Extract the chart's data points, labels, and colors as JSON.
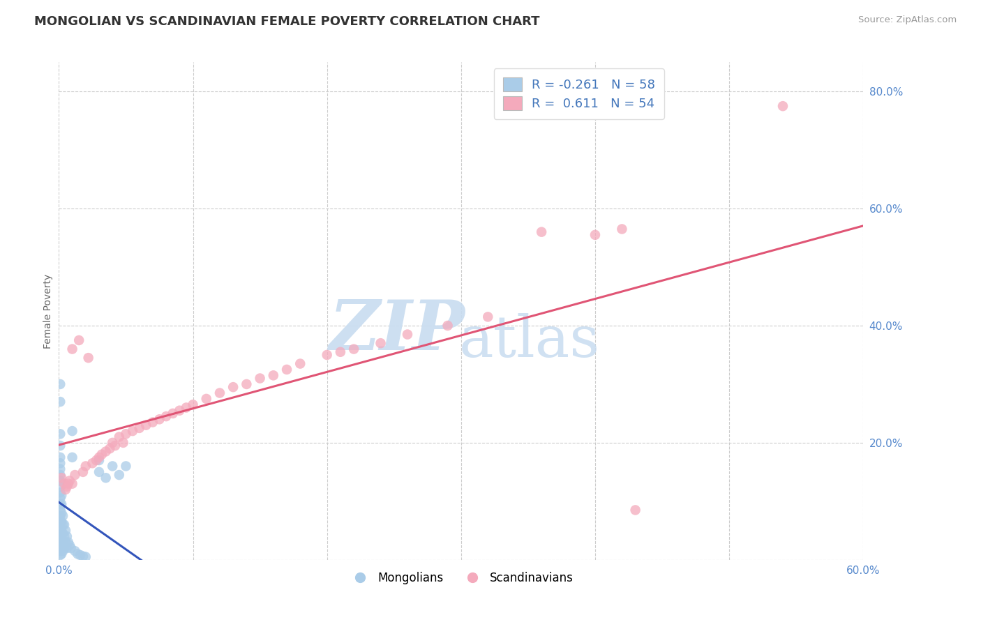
{
  "title": "MONGOLIAN VS SCANDINAVIAN FEMALE POVERTY CORRELATION CHART",
  "source": "Source: ZipAtlas.com",
  "ylabel": "Female Poverty",
  "xlim": [
    0.0,
    0.6
  ],
  "ylim": [
    0.0,
    0.85
  ],
  "x_tick_labels": [
    "0.0%",
    "",
    "",
    "",
    "",
    "",
    "60.0%"
  ],
  "y_tick_labels": [
    "",
    "20.0%",
    "40.0%",
    "60.0%",
    "80.0%"
  ],
  "mongolian_color": "#AACCE8",
  "scandinavian_color": "#F4AABC",
  "mongolian_line_color": "#3355BB",
  "scandinavian_line_color": "#E05575",
  "legend_mongolian_label": "Mongolians",
  "legend_scandinavian_label": "Scandinavians",
  "r_mongolian": -0.261,
  "n_mongolian": 58,
  "r_scandinavian": 0.611,
  "n_scandinavian": 54,
  "background_color": "#FFFFFF",
  "mongolian_points": [
    [
      0.001,
      0.3
    ],
    [
      0.001,
      0.27
    ],
    [
      0.001,
      0.215
    ],
    [
      0.001,
      0.195
    ],
    [
      0.001,
      0.175
    ],
    [
      0.001,
      0.165
    ],
    [
      0.001,
      0.155
    ],
    [
      0.001,
      0.145
    ],
    [
      0.001,
      0.135
    ],
    [
      0.001,
      0.125
    ],
    [
      0.001,
      0.115
    ],
    [
      0.001,
      0.105
    ],
    [
      0.001,
      0.095
    ],
    [
      0.001,
      0.085
    ],
    [
      0.001,
      0.075
    ],
    [
      0.001,
      0.065
    ],
    [
      0.001,
      0.055
    ],
    [
      0.001,
      0.045
    ],
    [
      0.001,
      0.035
    ],
    [
      0.001,
      0.025
    ],
    [
      0.001,
      0.015
    ],
    [
      0.001,
      0.008
    ],
    [
      0.002,
      0.11
    ],
    [
      0.002,
      0.095
    ],
    [
      0.002,
      0.08
    ],
    [
      0.002,
      0.065
    ],
    [
      0.002,
      0.05
    ],
    [
      0.002,
      0.035
    ],
    [
      0.002,
      0.02
    ],
    [
      0.002,
      0.01
    ],
    [
      0.003,
      0.075
    ],
    [
      0.003,
      0.06
    ],
    [
      0.003,
      0.045
    ],
    [
      0.003,
      0.03
    ],
    [
      0.003,
      0.015
    ],
    [
      0.004,
      0.06
    ],
    [
      0.004,
      0.04
    ],
    [
      0.004,
      0.02
    ],
    [
      0.005,
      0.05
    ],
    [
      0.005,
      0.03
    ],
    [
      0.006,
      0.04
    ],
    [
      0.006,
      0.02
    ],
    [
      0.007,
      0.03
    ],
    [
      0.008,
      0.025
    ],
    [
      0.009,
      0.02
    ],
    [
      0.01,
      0.22
    ],
    [
      0.01,
      0.175
    ],
    [
      0.012,
      0.015
    ],
    [
      0.014,
      0.01
    ],
    [
      0.016,
      0.008
    ],
    [
      0.018,
      0.006
    ],
    [
      0.02,
      0.005
    ],
    [
      0.03,
      0.17
    ],
    [
      0.03,
      0.15
    ],
    [
      0.035,
      0.14
    ],
    [
      0.04,
      0.16
    ],
    [
      0.045,
      0.145
    ],
    [
      0.05,
      0.16
    ]
  ],
  "scandinavian_points": [
    [
      0.002,
      0.14
    ],
    [
      0.004,
      0.13
    ],
    [
      0.005,
      0.12
    ],
    [
      0.006,
      0.125
    ],
    [
      0.007,
      0.13
    ],
    [
      0.008,
      0.135
    ],
    [
      0.01,
      0.13
    ],
    [
      0.01,
      0.36
    ],
    [
      0.012,
      0.145
    ],
    [
      0.015,
      0.375
    ],
    [
      0.018,
      0.15
    ],
    [
      0.02,
      0.16
    ],
    [
      0.022,
      0.345
    ],
    [
      0.025,
      0.165
    ],
    [
      0.028,
      0.17
    ],
    [
      0.03,
      0.175
    ],
    [
      0.032,
      0.18
    ],
    [
      0.035,
      0.185
    ],
    [
      0.038,
      0.19
    ],
    [
      0.04,
      0.2
    ],
    [
      0.042,
      0.195
    ],
    [
      0.045,
      0.21
    ],
    [
      0.048,
      0.2
    ],
    [
      0.05,
      0.215
    ],
    [
      0.055,
      0.22
    ],
    [
      0.06,
      0.225
    ],
    [
      0.065,
      0.23
    ],
    [
      0.07,
      0.235
    ],
    [
      0.075,
      0.24
    ],
    [
      0.08,
      0.245
    ],
    [
      0.085,
      0.25
    ],
    [
      0.09,
      0.255
    ],
    [
      0.095,
      0.26
    ],
    [
      0.1,
      0.265
    ],
    [
      0.11,
      0.275
    ],
    [
      0.12,
      0.285
    ],
    [
      0.13,
      0.295
    ],
    [
      0.14,
      0.3
    ],
    [
      0.15,
      0.31
    ],
    [
      0.16,
      0.315
    ],
    [
      0.17,
      0.325
    ],
    [
      0.18,
      0.335
    ],
    [
      0.2,
      0.35
    ],
    [
      0.21,
      0.355
    ],
    [
      0.22,
      0.36
    ],
    [
      0.24,
      0.37
    ],
    [
      0.26,
      0.385
    ],
    [
      0.29,
      0.4
    ],
    [
      0.32,
      0.415
    ],
    [
      0.36,
      0.56
    ],
    [
      0.4,
      0.555
    ],
    [
      0.42,
      0.565
    ],
    [
      0.43,
      0.085
    ],
    [
      0.54,
      0.775
    ]
  ]
}
